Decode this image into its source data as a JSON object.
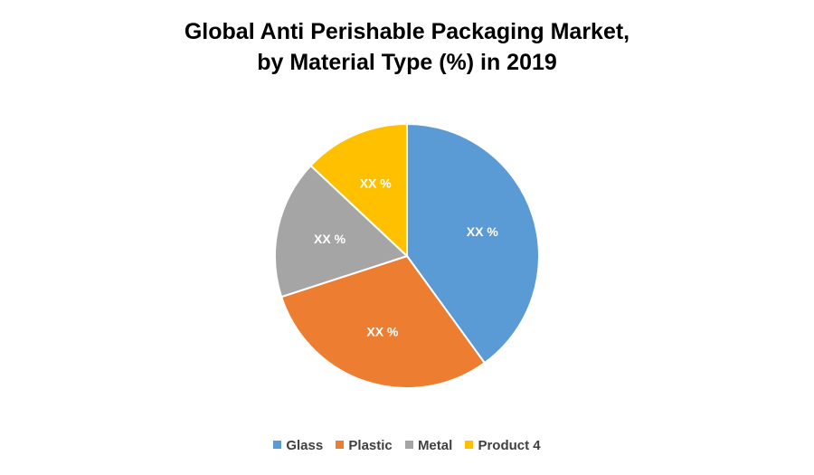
{
  "chart_data": {
    "type": "pie",
    "title_line1": "Global Anti Perishable Packaging Market,",
    "title_line2": "by Material Type (%) in 2019",
    "categories": [
      "Glass",
      "Plastic",
      "Metal",
      "Product 4"
    ],
    "values": [
      40,
      30,
      17,
      13
    ],
    "labels": [
      "XX %",
      "XX %",
      "XX %",
      "XX %"
    ],
    "colors": [
      "#5b9bd5",
      "#ed7d31",
      "#a5a5a5",
      "#ffc000"
    ],
    "legend_position": "bottom"
  }
}
